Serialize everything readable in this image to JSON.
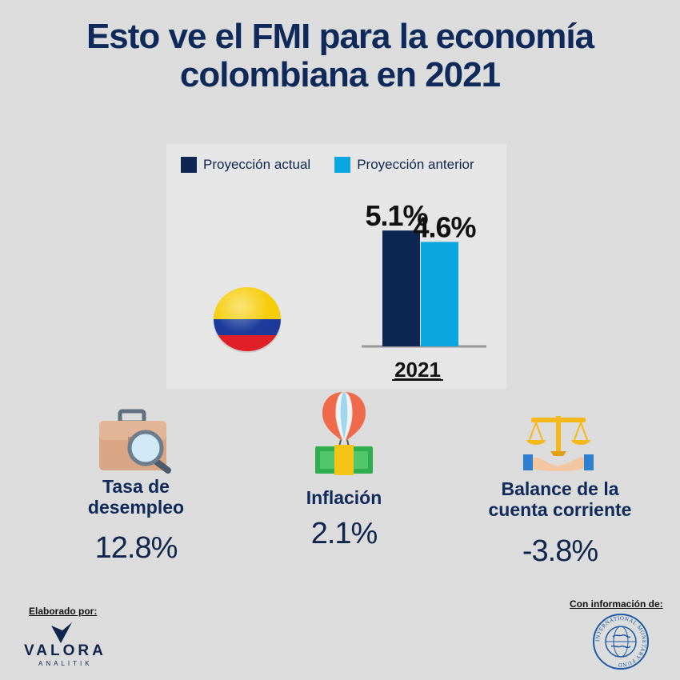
{
  "title": {
    "line1": "Esto ve el FMI para la economía",
    "line2": "colombiana en 2021"
  },
  "chart_data": {
    "type": "bar",
    "categories": [
      "2021"
    ],
    "series": [
      {
        "name": "Proyección actual",
        "values": [
          5.1
        ],
        "label": "5.1%",
        "color": "#0d2752"
      },
      {
        "name": "Proyección anterior",
        "values": [
          4.6
        ],
        "label": "4.6%",
        "color": "#0aa7e0"
      }
    ],
    "legend_position": "top"
  },
  "kpis": [
    {
      "label_line1": "Tasa de",
      "label_line2": "desempleo",
      "value": "12.8%",
      "icon": "briefcase-magnifier-icon"
    },
    {
      "label_line1": "Inflación",
      "label_line2": "",
      "value": "2.1%",
      "icon": "balloon-money-icon"
    },
    {
      "label_line1": "Balance de la",
      "label_line2": "cuenta corriente",
      "value": "-3.8%",
      "icon": "scales-hands-icon"
    }
  ],
  "footer": {
    "made_by": "Elaborado por:",
    "brand": "VALORA",
    "brand_sub": "ANALITIK",
    "source_label": "Con información de:",
    "seal_text": "INTERNATIONAL MONETARY FUND"
  },
  "colors": {
    "navy": "#0d2752",
    "cyan": "#0aa7e0",
    "background": "#dcdcdc"
  }
}
